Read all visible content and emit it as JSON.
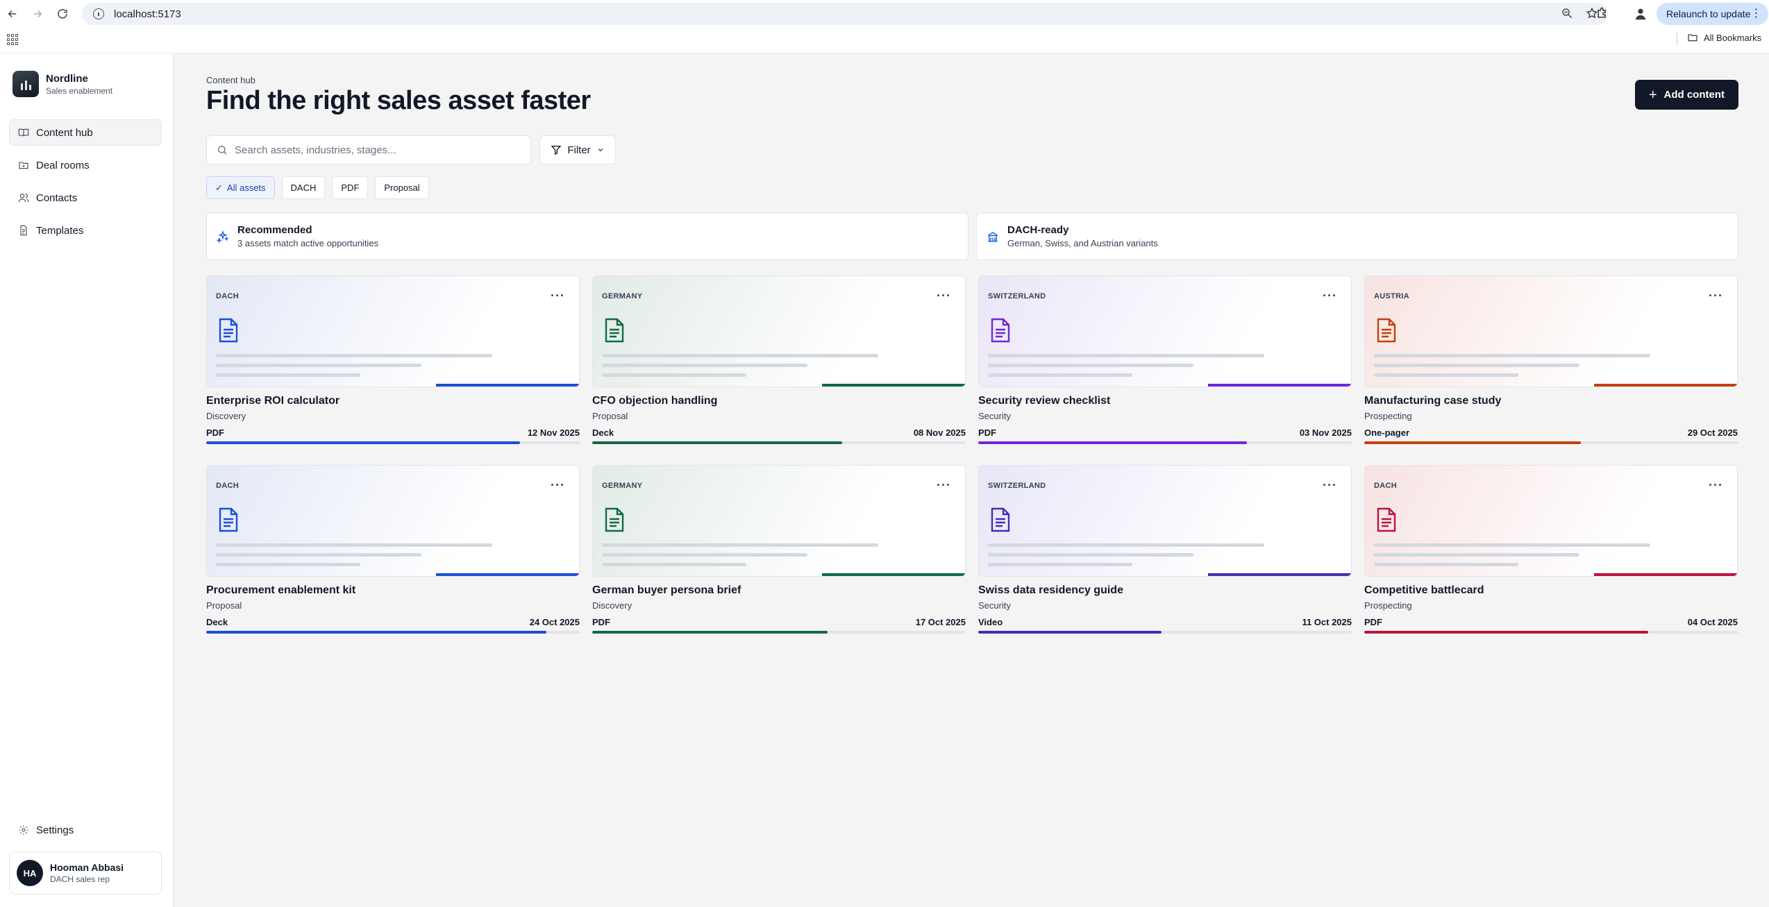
{
  "browser": {
    "url": "localhost:5173",
    "relaunch_label": "Relaunch to update",
    "bookmarks_label": "All Bookmarks"
  },
  "sidebar": {
    "brand_name": "Nordline",
    "brand_sub": "Sales enablement",
    "items": [
      {
        "label": "Content hub",
        "icon": "book-open-icon",
        "active": true
      },
      {
        "label": "Deal rooms",
        "icon": "folder-icon",
        "active": false
      },
      {
        "label": "Contacts",
        "icon": "users-icon",
        "active": false
      },
      {
        "label": "Templates",
        "icon": "file-icon",
        "active": false
      }
    ],
    "settings_label": "Settings",
    "user": {
      "initials": "HA",
      "name": "Hooman Abbasi",
      "role": "DACH sales rep"
    }
  },
  "header": {
    "eyebrow": "Content hub",
    "title": "Find the right sales asset faster",
    "add_label": "Add content"
  },
  "search": {
    "placeholder": "Search assets, industries, stages...",
    "value": ""
  },
  "filter_label": "Filter",
  "chips": [
    {
      "label": "All assets",
      "active": true
    },
    {
      "label": "DACH",
      "active": false
    },
    {
      "label": "PDF",
      "active": false
    },
    {
      "label": "Proposal",
      "active": false
    }
  ],
  "features": [
    {
      "title": "Recommended",
      "subtitle": "3 assets match active opportunities",
      "icon": "sparkles-icon",
      "color": "#2563eb"
    },
    {
      "title": "DACH-ready",
      "subtitle": "German, Swiss, and Austrian variants",
      "icon": "building-icon",
      "color": "#2563eb"
    }
  ],
  "cards": [
    {
      "region": "DACH",
      "title": "Enterprise ROI calculator",
      "stage": "Discovery",
      "type": "PDF",
      "date": "12 Nov 2025",
      "progress": 0.84,
      "color": "#1d4ed8",
      "tint": "#e3e8f6"
    },
    {
      "region": "GERMANY",
      "title": "CFO objection handling",
      "stage": "Proposal",
      "type": "Deck",
      "date": "08 Nov 2025",
      "progress": 0.67,
      "color": "#0f6b47",
      "tint": "#e1ebe6"
    },
    {
      "region": "SWITZERLAND",
      "title": "Security review checklist",
      "stage": "Security",
      "type": "PDF",
      "date": "03 Nov 2025",
      "progress": 0.72,
      "color": "#6d28d9",
      "tint": "#ebe5f7"
    },
    {
      "region": "AUSTRIA",
      "title": "Manufacturing case study",
      "stage": "Prospecting",
      "type": "One-pager",
      "date": "29 Oct 2025",
      "progress": 0.58,
      "color": "#c2410c",
      "tint": "#f7e3e1"
    },
    {
      "region": "DACH",
      "title": "Procurement enablement kit",
      "stage": "Proposal",
      "type": "Deck",
      "date": "24 Oct 2025",
      "progress": 0.91,
      "color": "#1d4ed8",
      "tint": "#e3e8f6"
    },
    {
      "region": "GERMANY",
      "title": "German buyer persona brief",
      "stage": "Discovery",
      "type": "PDF",
      "date": "17 Oct 2025",
      "progress": 0.63,
      "color": "#0f6b47",
      "tint": "#e1ebe6"
    },
    {
      "region": "SWITZERLAND",
      "title": "Swiss data residency guide",
      "stage": "Security",
      "type": "Video",
      "date": "11 Oct 2025",
      "progress": 0.49,
      "color": "#3f2fb5",
      "tint": "#e8e6f7"
    },
    {
      "region": "DACH",
      "title": "Competitive battlecard",
      "stage": "Prospecting",
      "type": "PDF",
      "date": "04 Oct 2025",
      "progress": 0.76,
      "color": "#be123c",
      "tint": "#f7e2e3"
    }
  ]
}
